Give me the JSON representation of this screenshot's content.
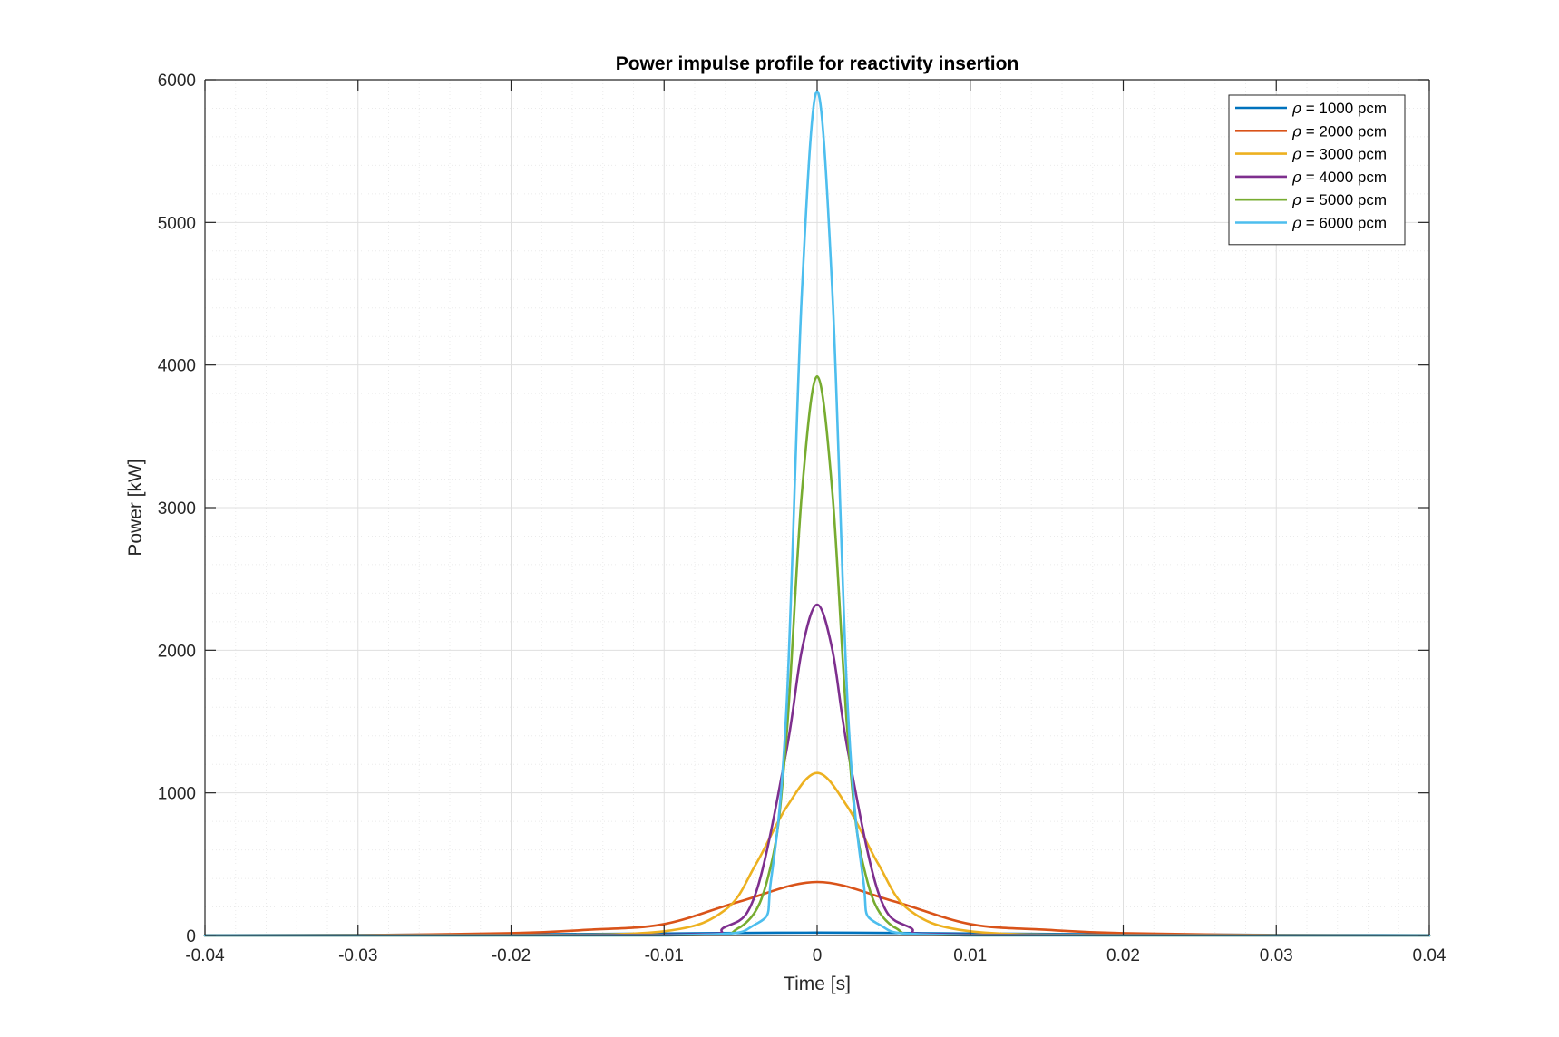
{
  "chart_data": {
    "type": "line",
    "title": "Power impulse profile for reactivity insertion",
    "xlabel": "Time [s]",
    "ylabel": "Power [kW]",
    "xlim": [
      -0.04,
      0.04
    ],
    "ylim": [
      0,
      6000
    ],
    "x_ticks": [
      -0.04,
      -0.03,
      -0.02,
      -0.01,
      0,
      0.01,
      0.02,
      0.03,
      0.04
    ],
    "x_tick_labels": [
      "-0.04",
      "-0.03",
      "-0.02",
      "-0.01",
      "0",
      "0.01",
      "0.02",
      "0.03",
      "0.04"
    ],
    "y_ticks": [
      0,
      1000,
      2000,
      3000,
      4000,
      5000,
      6000
    ],
    "y_tick_labels": [
      "0",
      "1000",
      "2000",
      "3000",
      "4000",
      "5000",
      "6000"
    ],
    "grid": true,
    "minor_grid": true,
    "legend_position": "top-right",
    "series": [
      {
        "name": "ρ = 1000 pcm",
        "rho_symbol": "ρ",
        "rho_text": " = 1000 pcm",
        "color": "#0072BD",
        "peak": 20,
        "x": [
          -0.04,
          -0.03,
          -0.02,
          -0.01,
          -0.005,
          0,
          0.005,
          0.01,
          0.02,
          0.03,
          0.04
        ],
        "y": [
          2,
          4,
          8,
          14,
          18,
          20,
          18,
          14,
          8,
          4,
          2
        ]
      },
      {
        "name": "ρ = 2000 pcm",
        "rho_symbol": "ρ",
        "rho_text": " = 2000 pcm",
        "color": "#D95319",
        "peak": 375,
        "x": [
          -0.04,
          -0.03,
          -0.02,
          -0.015,
          -0.01,
          -0.005,
          0,
          0.005,
          0.01,
          0.015,
          0.02,
          0.03,
          0.04
        ],
        "y": [
          1,
          3,
          16,
          40,
          80,
          240,
          375,
          240,
          80,
          40,
          16,
          3,
          1
        ]
      },
      {
        "name": "ρ = 3000 pcm",
        "rho_symbol": "ρ",
        "rho_text": " = 3000 pcm",
        "color": "#EDB120",
        "peak": 1140,
        "x": [
          -0.04,
          -0.02,
          -0.01,
          -0.006,
          -0.004,
          -0.002,
          0,
          0.002,
          0.004,
          0.006,
          0.01,
          0.02,
          0.04
        ],
        "y": [
          0,
          2,
          30,
          180,
          500,
          900,
          1140,
          900,
          500,
          180,
          30,
          2,
          0
        ]
      },
      {
        "name": "ρ = 4000 pcm",
        "rho_symbol": "ρ",
        "rho_text": " = 4000 pcm",
        "color": "#7E2F8E",
        "peak": 2320,
        "x": [
          -0.04,
          -0.01,
          -0.006,
          -0.004,
          -0.002,
          -0.001,
          0,
          0.001,
          0.002,
          0.004,
          0.006,
          0.01,
          0.04
        ],
        "y": [
          0,
          5,
          60,
          300,
          1300,
          2000,
          2320,
          2000,
          1300,
          300,
          60,
          5,
          0
        ]
      },
      {
        "name": "ρ = 5000 pcm",
        "rho_symbol": "ρ",
        "rho_text": " = 5000 pcm",
        "color": "#77AC30",
        "peak": 3920,
        "x": [
          -0.04,
          -0.01,
          -0.005,
          -0.003,
          -0.002,
          -0.001,
          0,
          0.001,
          0.002,
          0.003,
          0.005,
          0.01,
          0.04
        ],
        "y": [
          0,
          1,
          60,
          500,
          1400,
          3100,
          3920,
          3100,
          1400,
          500,
          60,
          1,
          0
        ]
      },
      {
        "name": "ρ = 6000 pcm",
        "rho_symbol": "ρ",
        "rho_text": " = 6000 pcm",
        "color": "#4DBEEE",
        "peak": 5920,
        "x": [
          -0.04,
          -0.01,
          -0.004,
          -0.003,
          -0.002,
          -0.001,
          0,
          0.001,
          0.002,
          0.003,
          0.004,
          0.01,
          0.04
        ],
        "y": [
          0,
          0,
          80,
          400,
          1600,
          4500,
          5920,
          4500,
          1600,
          400,
          80,
          0,
          0
        ]
      }
    ]
  }
}
